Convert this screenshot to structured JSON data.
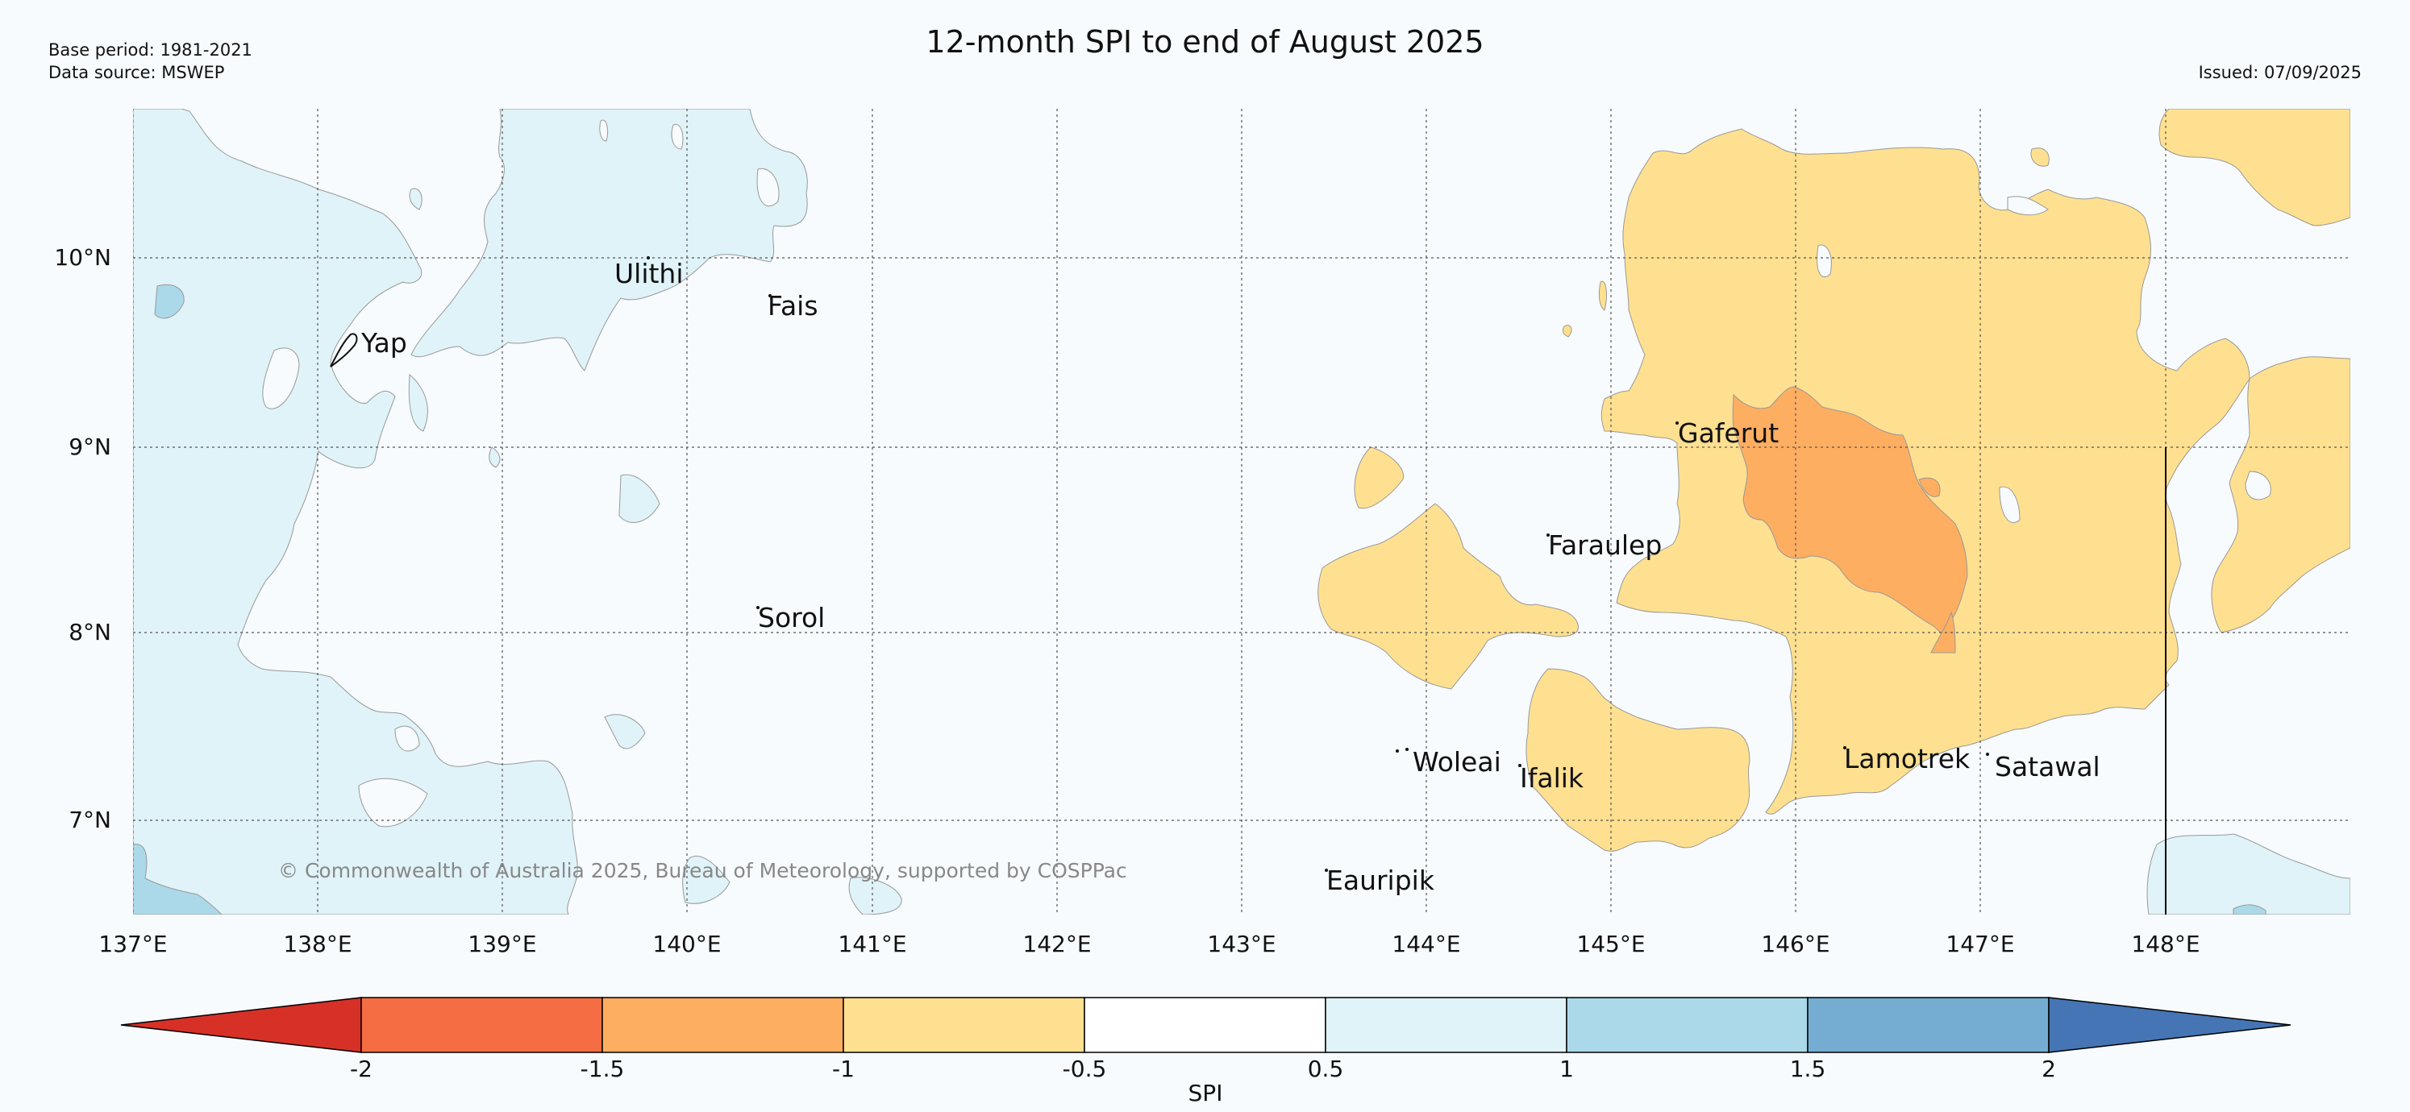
{
  "header": {
    "title": "12-month SPI to end of August 2025",
    "base_period": "Base period: 1981-2021",
    "data_source": "Data source: MSWEP",
    "issued": "Issued: 07/09/2025"
  },
  "map": {
    "latitude_labels": [
      "10°N",
      "9°N",
      "8°N",
      "7°N"
    ],
    "longitude_labels": [
      "137°E",
      "138°E",
      "139°E",
      "140°E",
      "141°E",
      "142°E",
      "143°E",
      "144°E",
      "145°E",
      "146°E",
      "147°E",
      "148°E"
    ],
    "islands": {
      "yap": "Yap",
      "ulithi": "Ulithi",
      "fais": "Fais",
      "sorol": "Sorol",
      "gaferut": "Gaferut",
      "faraulep": "Faraulep",
      "woleai": "Woleai",
      "ifalik": "Ifalik",
      "lamotrek": "Lamotrek",
      "satawal": "Satawal",
      "eauripik": "Eauripik"
    },
    "copyright": "© Commonwealth of Australia 2025, Bureau of Meteorology, supported by COSPPac"
  },
  "colorbar": {
    "label": "SPI",
    "ticks": [
      "-2",
      "-1.5",
      "-1",
      "-0.5",
      "0.5",
      "1",
      "1.5",
      "2"
    ],
    "colors": [
      "#d73027",
      "#f46d43",
      "#fdae61",
      "#fee090",
      "#ffffff",
      "#e0f3f8",
      "#abd9e9",
      "#74add1",
      "#4575b4"
    ]
  }
}
